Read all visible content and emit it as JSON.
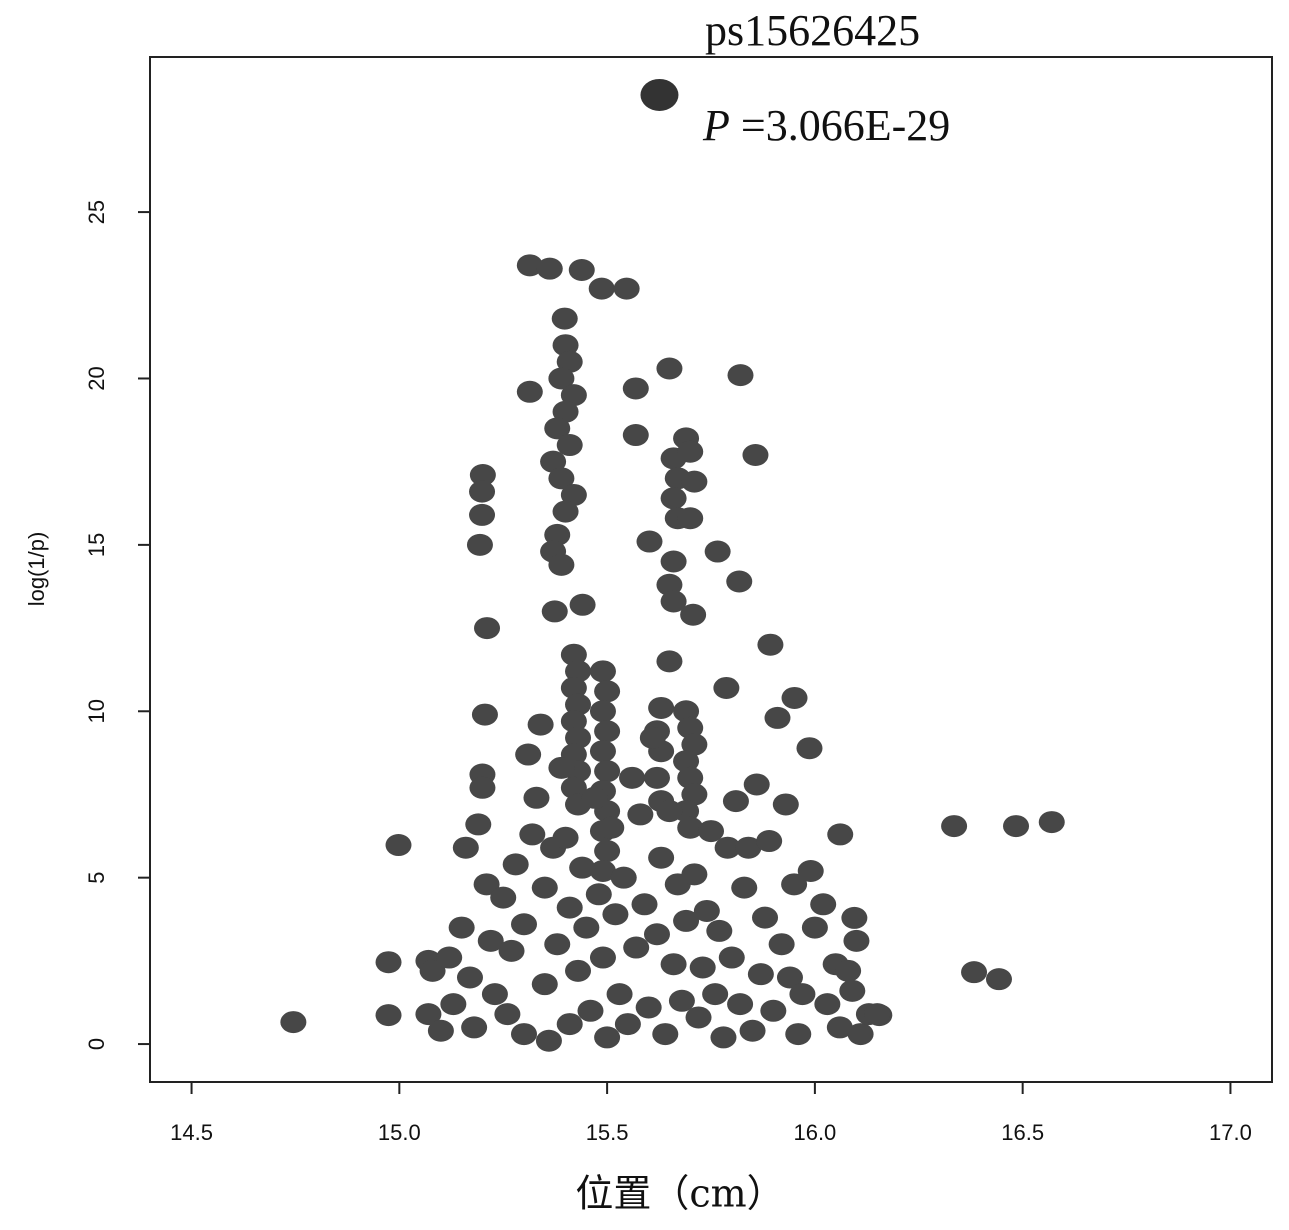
{
  "chart_data": {
    "type": "scatter",
    "x_label": "位置（cm）",
    "y_label": "log(1/p)",
    "annotation_name": "ps15626425",
    "annotation_p": "P",
    "annotation_value": " =3.066E-29",
    "xlim": [
      14.4,
      17.1
    ],
    "ylim": [
      -1.14,
      29.66
    ],
    "xticks": [
      14.5,
      {
        "value": 15,
        "label": "15.0"
      },
      15.5,
      {
        "value": 16,
        "label": "16.0"
      },
      16.5,
      {
        "value": 17,
        "label": "17.0"
      }
    ],
    "yticks": [
      0,
      5,
      10,
      15,
      20,
      25
    ],
    "series": [
      {
        "color": "#474747",
        "x": [
          14.745,
          15.314,
          15.362,
          15.439,
          15.487,
          15.547,
          15.398,
          15.314,
          15.569,
          15.65,
          15.821,
          15.857,
          15.201,
          15.199,
          15.199,
          15.194,
          15.211,
          15.206,
          15.569,
          15.766,
          15.818,
          15.893,
          15.787,
          15.65,
          15.707,
          15.602,
          15.374,
          15.441,
          16.061,
          16.335,
          16.484,
          16.57,
          16.383,
          16.443,
          16.095,
          16.155,
          15.987,
          15.951,
          14.998,
          14.974,
          14.974,
          15.4,
          15.41,
          15.39,
          15.42,
          15.4,
          15.38,
          15.41,
          15.37,
          15.39,
          15.42,
          15.4,
          15.38,
          15.37,
          15.39,
          15.42,
          15.43,
          15.42,
          15.43,
          15.42,
          15.43,
          15.42,
          15.43,
          15.42,
          15.43,
          15.49,
          15.5,
          15.49,
          15.5,
          15.49,
          15.5,
          15.49,
          15.5,
          15.49,
          15.5,
          15.49,
          15.66,
          15.67,
          15.66,
          15.67,
          15.66,
          15.65,
          15.66,
          15.69,
          15.7,
          15.71,
          15.7,
          15.69,
          15.7,
          15.71,
          15.69,
          15.7,
          15.71,
          15.69,
          15.7,
          15.63,
          15.62,
          15.63,
          15.62,
          15.63,
          15.07,
          15.08,
          15.07,
          15.1,
          15.12,
          15.13,
          15.15,
          15.16,
          15.17,
          15.18,
          15.19,
          15.2,
          15.2,
          15.21,
          15.22,
          15.23,
          15.25,
          15.26,
          15.27,
          15.28,
          15.3,
          15.3,
          15.31,
          15.32,
          15.33,
          15.34,
          15.35,
          15.35,
          15.36,
          15.37,
          15.38,
          15.39,
          15.4,
          15.41,
          15.41,
          15.43,
          15.44,
          15.45,
          15.46,
          15.47,
          15.48,
          15.49,
          15.5,
          15.51,
          15.52,
          15.53,
          15.54,
          15.55,
          15.56,
          15.57,
          15.58,
          15.59,
          15.6,
          15.61,
          15.62,
          15.63,
          15.64,
          15.65,
          15.66,
          15.67,
          15.68,
          15.69,
          15.71,
          15.72,
          15.73,
          15.74,
          15.75,
          15.76,
          15.77,
          15.78,
          15.79,
          15.8,
          15.81,
          15.82,
          15.83,
          15.84,
          15.85,
          15.86,
          15.87,
          15.88,
          15.89,
          15.9,
          15.91,
          15.92,
          15.93,
          15.94,
          15.95,
          15.96,
          15.97,
          15.99,
          16.0,
          16.02,
          16.03,
          16.05,
          16.06,
          16.08,
          16.09,
          16.1,
          16.11,
          16.13,
          16.15
        ],
        "values": [
          0.66,
          23.4,
          23.3,
          23.26,
          22.7,
          22.7,
          21.8,
          19.6,
          19.7,
          20.3,
          20.1,
          17.7,
          17.1,
          16.6,
          15.9,
          15.0,
          12.5,
          9.9,
          18.3,
          14.8,
          13.9,
          12.0,
          10.7,
          11.5,
          12.9,
          15.1,
          13.0,
          13.2,
          6.3,
          6.55,
          6.55,
          6.67,
          2.16,
          1.95,
          3.79,
          0.87,
          8.89,
          10.4,
          5.98,
          2.46,
          0.87,
          21.0,
          20.5,
          20.0,
          19.5,
          19.0,
          18.5,
          18.0,
          17.5,
          17.0,
          16.5,
          16.0,
          15.3,
          14.8,
          14.4,
          11.7,
          11.2,
          10.7,
          10.2,
          9.7,
          9.2,
          8.7,
          8.2,
          7.7,
          7.2,
          11.2,
          10.6,
          10.0,
          9.4,
          8.8,
          8.2,
          7.6,
          7.0,
          6.4,
          5.8,
          5.2,
          17.6,
          17.0,
          16.4,
          15.8,
          14.5,
          13.8,
          13.3,
          18.2,
          17.8,
          16.9,
          15.8,
          10.0,
          9.5,
          9.0,
          8.5,
          8.0,
          7.5,
          7.0,
          6.5,
          10.1,
          9.4,
          8.8,
          8.0,
          7.3,
          2.5,
          2.2,
          0.9,
          0.4,
          2.6,
          1.2,
          3.5,
          5.9,
          2.0,
          0.5,
          6.6,
          8.1,
          7.7,
          4.8,
          3.1,
          1.5,
          4.4,
          0.9,
          2.8,
          5.4,
          3.6,
          0.3,
          8.7,
          6.3,
          7.4,
          9.6,
          4.7,
          1.8,
          0.1,
          5.9,
          3.0,
          8.3,
          6.2,
          4.1,
          0.6,
          2.2,
          5.3,
          3.5,
          1.0,
          7.4,
          4.5,
          2.6,
          0.2,
          6.5,
          3.9,
          1.5,
          5.0,
          0.6,
          8.0,
          2.9,
          6.9,
          4.2,
          1.1,
          9.2,
          3.3,
          5.6,
          0.3,
          7.0,
          2.4,
          4.8,
          1.3,
          3.7,
          5.1,
          0.8,
          2.3,
          4.0,
          6.4,
          1.5,
          3.4,
          0.2,
          5.9,
          2.6,
          7.3,
          1.2,
          4.7,
          5.9,
          0.4,
          7.8,
          2.1,
          3.8,
          6.1,
          1.0,
          9.8,
          3.0,
          7.2,
          2.0,
          4.8,
          0.3,
          1.5,
          5.2,
          3.5,
          4.2,
          1.2,
          2.4,
          0.5,
          2.2,
          1.6,
          3.1,
          0.3,
          0.9,
          0.9
        ]
      },
      {
        "color": "#333333",
        "x": [
          15.626
        ],
        "values": [
          28.52
        ]
      }
    ]
  }
}
